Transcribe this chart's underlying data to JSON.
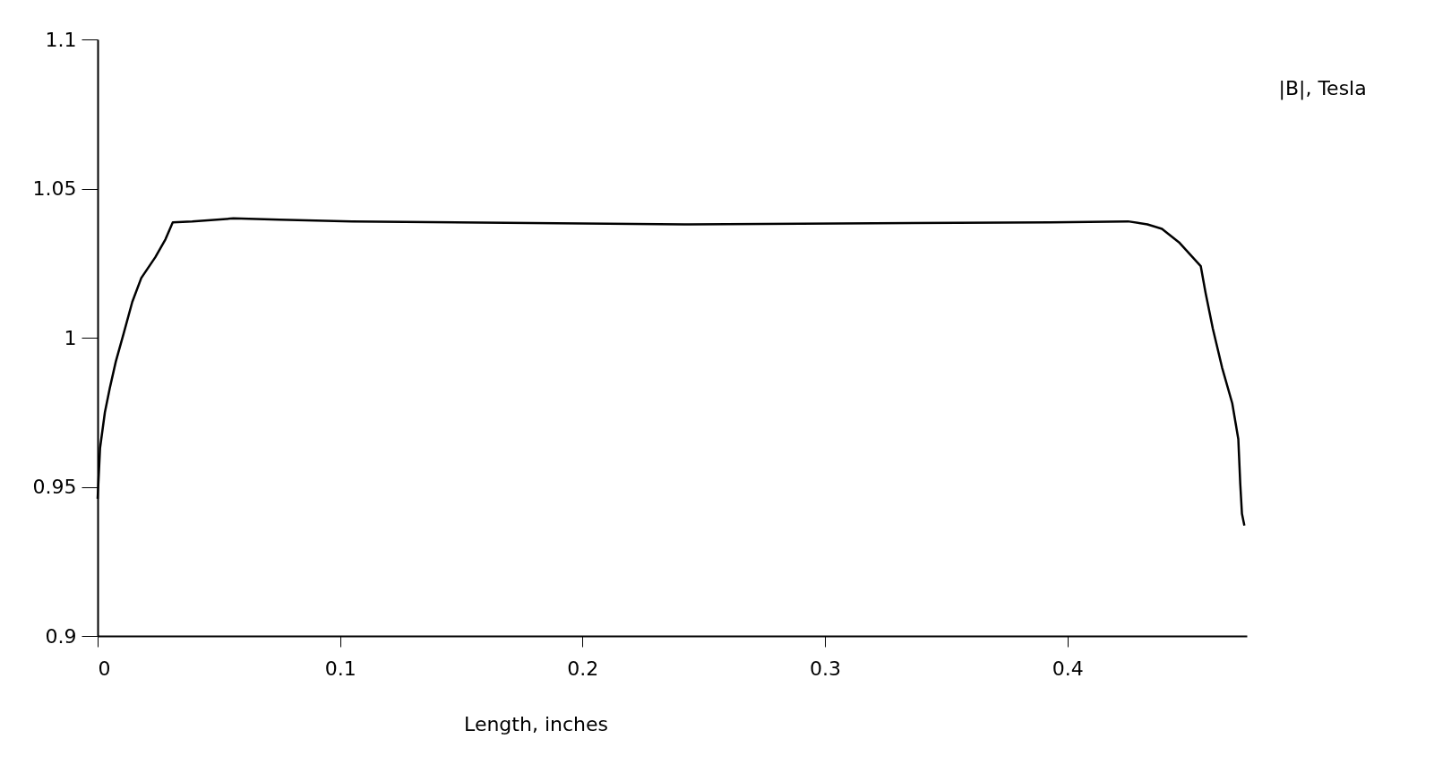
{
  "chart_data": {
    "type": "line",
    "xlabel": "Length, inches",
    "ylabel": "|B|, Tesla",
    "xlim": [
      0,
      0.474
    ],
    "ylim": [
      0.9,
      1.1
    ],
    "xticks": [
      0,
      0.1,
      0.2,
      0.3,
      0.4
    ],
    "yticks": [
      0.9,
      0.95,
      1,
      1.05,
      1.1
    ],
    "grid": false,
    "legend": false,
    "series": [
      {
        "color": "#000000",
        "x": [
          0,
          0.001,
          0.003,
          0.005,
          0.0075,
          0.0106,
          0.0143,
          0.018,
          0.0238,
          0.028,
          0.031,
          0.039,
          0.056,
          0.075,
          0.105,
          0.244,
          0.393,
          0.425,
          0.433,
          0.439,
          0.446,
          0.455,
          0.457,
          0.46,
          0.4638,
          0.468,
          0.4705,
          0.4713,
          0.472,
          0.473
        ],
        "values": [
          0.946,
          0.963,
          0.975,
          0.983,
          0.992,
          1.001,
          1.012,
          1.02,
          1.027,
          1.033,
          1.0387,
          1.039,
          1.04,
          1.0396,
          1.039,
          1.038,
          1.0387,
          1.039,
          1.038,
          1.0365,
          1.032,
          1.024,
          1.015,
          1.003,
          0.99,
          0.978,
          0.966,
          0.951,
          0.941,
          0.937
        ]
      }
    ]
  }
}
